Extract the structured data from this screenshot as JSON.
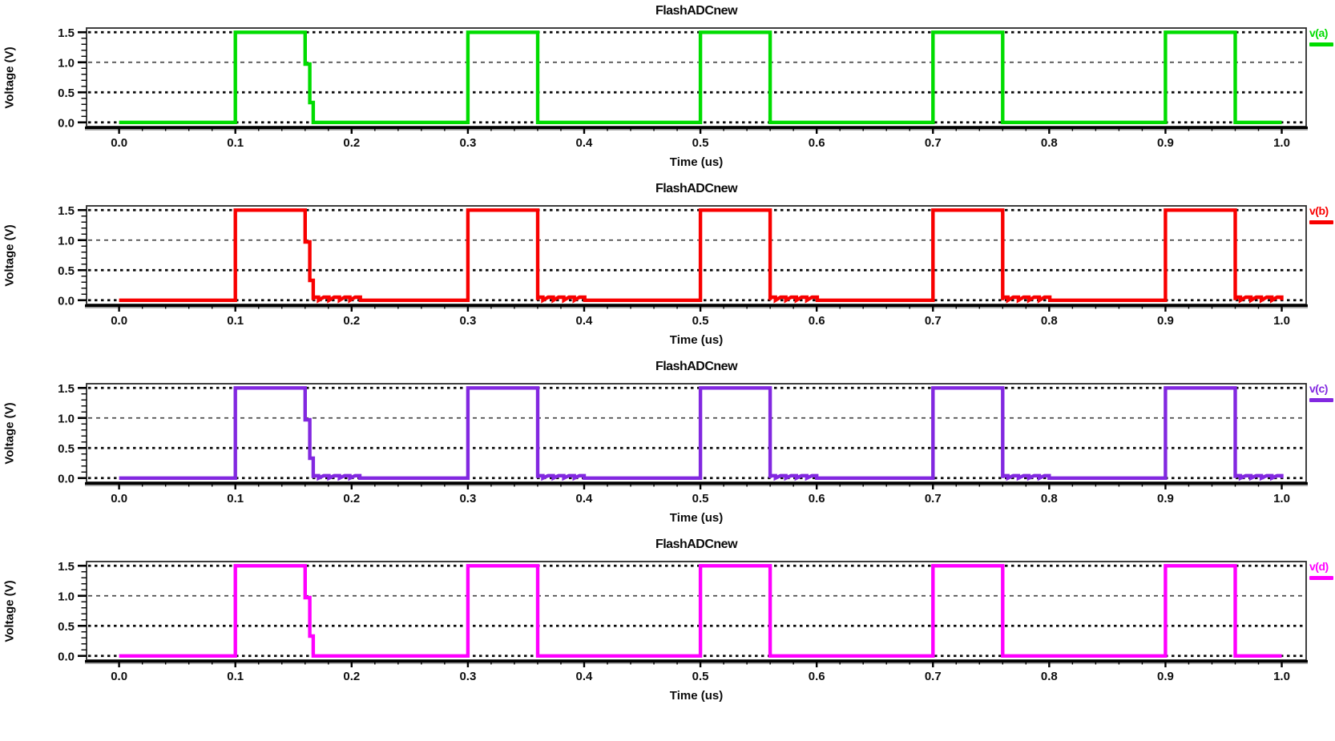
{
  "figure_background": "#ffffff",
  "chart_data": [
    {
      "type": "line",
      "title": "FlashADCnew",
      "xlabel": "Time (us)",
      "ylabel": "Voltage (V)",
      "legend": "v(a)",
      "color": "#00dc00",
      "xlim": [
        -0.028,
        1.021
      ],
      "ylim": [
        -0.07,
        1.57
      ],
      "x_tick_values": [
        0.0,
        0.1,
        0.2,
        0.3,
        0.4,
        0.5,
        0.6,
        0.7,
        0.8,
        0.9,
        1.0
      ],
      "x_tick_labels": [
        "0.0",
        "0.1",
        "0.2",
        "0.3",
        "0.4",
        "0.5",
        "0.6",
        "0.7",
        "0.8",
        "0.9",
        "1.0"
      ],
      "x_minor_step": 0.02,
      "y_tick_values": [
        0.0,
        0.5,
        1.0,
        1.5
      ],
      "y_tick_labels": [
        "0.0",
        "0.5",
        "1.0",
        "1.5"
      ],
      "y_minor_step": 0.1,
      "grid": {
        "bold_lines": [
          0.0,
          0.5,
          1.5
        ],
        "light_lines": [
          1.0
        ]
      },
      "waveform": {
        "t_start": 0.0,
        "t_end": 1.0,
        "low": 0.0,
        "high": 1.5,
        "pulses": [
          [
            0.1,
            0.16
          ],
          [
            0.3,
            0.36
          ],
          [
            0.5,
            0.56
          ],
          [
            0.7,
            0.76
          ],
          [
            0.9,
            0.96
          ]
        ],
        "period": 0.2,
        "pulse_width": 0.06,
        "first_fall_notch": [
          0.97,
          0.33
        ],
        "settle_ripple": null
      }
    },
    {
      "type": "line",
      "title": "FlashADCnew",
      "xlabel": "Time (us)",
      "ylabel": "Voltage (V)",
      "legend": "v(b)",
      "color": "#f80000",
      "xlim": [
        -0.028,
        1.021
      ],
      "ylim": [
        -0.07,
        1.57
      ],
      "x_tick_values": [
        0.0,
        0.1,
        0.2,
        0.3,
        0.4,
        0.5,
        0.6,
        0.7,
        0.8,
        0.9,
        1.0
      ],
      "x_tick_labels": [
        "0.0",
        "0.1",
        "0.2",
        "0.3",
        "0.4",
        "0.5",
        "0.6",
        "0.7",
        "0.8",
        "0.9",
        "1.0"
      ],
      "x_minor_step": 0.02,
      "y_tick_values": [
        0.0,
        0.5,
        1.0,
        1.5
      ],
      "y_tick_labels": [
        "0.0",
        "0.5",
        "1.0",
        "1.5"
      ],
      "y_minor_step": 0.1,
      "grid": {
        "bold_lines": [
          0.0,
          0.5,
          1.5
        ],
        "light_lines": [
          1.0
        ]
      },
      "waveform": {
        "t_start": 0.0,
        "t_end": 1.0,
        "low": 0.0,
        "high": 1.5,
        "pulses": [
          [
            0.1,
            0.16
          ],
          [
            0.3,
            0.36
          ],
          [
            0.5,
            0.56
          ],
          [
            0.7,
            0.76
          ],
          [
            0.9,
            0.96
          ]
        ],
        "period": 0.2,
        "pulse_width": 0.06,
        "first_fall_notch": [
          0.97,
          0.33
        ],
        "settle_ripple": {
          "duration": 0.045,
          "amplitude": 0.05,
          "period": 0.009
        }
      }
    },
    {
      "type": "line",
      "title": "FlashADCnew",
      "xlabel": "Time (us)",
      "ylabel": "Voltage (V)",
      "legend": "v(c)",
      "color": "#8228e0",
      "xlim": [
        -0.028,
        1.021
      ],
      "ylim": [
        -0.07,
        1.57
      ],
      "x_tick_values": [
        0.0,
        0.1,
        0.2,
        0.3,
        0.4,
        0.5,
        0.6,
        0.7,
        0.8,
        0.9,
        1.0
      ],
      "x_tick_labels": [
        "0.0",
        "0.1",
        "0.2",
        "0.3",
        "0.4",
        "0.5",
        "0.6",
        "0.7",
        "0.8",
        "0.9",
        "1.0"
      ],
      "x_minor_step": 0.02,
      "y_tick_values": [
        0.0,
        0.5,
        1.0,
        1.5
      ],
      "y_tick_labels": [
        "0.0",
        "0.5",
        "1.0",
        "1.5"
      ],
      "y_minor_step": 0.1,
      "grid": {
        "bold_lines": [
          0.0,
          0.5,
          1.5
        ],
        "light_lines": [
          1.0
        ]
      },
      "waveform": {
        "t_start": 0.0,
        "t_end": 1.0,
        "low": 0.0,
        "high": 1.5,
        "pulses": [
          [
            0.1,
            0.16
          ],
          [
            0.3,
            0.36
          ],
          [
            0.5,
            0.56
          ],
          [
            0.7,
            0.76
          ],
          [
            0.9,
            0.96
          ]
        ],
        "period": 0.2,
        "pulse_width": 0.06,
        "first_fall_notch": [
          0.97,
          0.33
        ],
        "settle_ripple": {
          "duration": 0.04,
          "amplitude": 0.04,
          "period": 0.009
        }
      }
    },
    {
      "type": "line",
      "title": "FlashADCnew",
      "xlabel": "Time (us)",
      "ylabel": "Voltage (V)",
      "legend": "v(d)",
      "color": "#ff00ff",
      "xlim": [
        -0.028,
        1.021
      ],
      "ylim": [
        -0.07,
        1.57
      ],
      "x_tick_values": [
        0.0,
        0.1,
        0.2,
        0.3,
        0.4,
        0.5,
        0.6,
        0.7,
        0.8,
        0.9,
        1.0
      ],
      "x_tick_labels": [
        "0.0",
        "0.1",
        "0.2",
        "0.3",
        "0.4",
        "0.5",
        "0.6",
        "0.7",
        "0.8",
        "0.9",
        "1.0"
      ],
      "x_minor_step": 0.02,
      "y_tick_values": [
        0.0,
        0.5,
        1.0,
        1.5
      ],
      "y_tick_labels": [
        "0.0",
        "0.5",
        "1.0",
        "1.5"
      ],
      "y_minor_step": 0.1,
      "grid": {
        "bold_lines": [
          0.0,
          0.5,
          1.5
        ],
        "light_lines": [
          1.0
        ]
      },
      "waveform": {
        "t_start": 0.0,
        "t_end": 1.0,
        "low": 0.0,
        "high": 1.5,
        "pulses": [
          [
            0.1,
            0.16
          ],
          [
            0.3,
            0.36
          ],
          [
            0.5,
            0.56
          ],
          [
            0.7,
            0.76
          ],
          [
            0.9,
            0.96
          ]
        ],
        "period": 0.2,
        "pulse_width": 0.06,
        "first_fall_notch": [
          0.97,
          0.33
        ],
        "settle_ripple": null
      }
    }
  ]
}
